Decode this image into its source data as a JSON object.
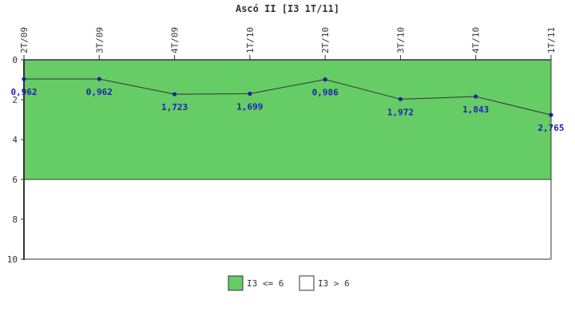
{
  "chart_data": {
    "type": "line",
    "title": "Ascó II [I3 1T/11]",
    "categories": [
      "2T/09",
      "3T/09",
      "4T/09",
      "1T/10",
      "2T/10",
      "3T/10",
      "4T/10",
      "1T/11"
    ],
    "series": [
      {
        "values": [
          0.962,
          0.962,
          1.723,
          1.699,
          0.986,
          1.972,
          1.843,
          2.765
        ],
        "labels": [
          "0,962",
          "0,962",
          "1,723",
          "1,699",
          "0,986",
          "1,972",
          "1,843",
          "2,765"
        ]
      }
    ],
    "ylim": [
      0,
      10
    ],
    "y_inverted": true,
    "yticks": [
      "0",
      "2",
      "4",
      "6",
      "8",
      "10"
    ],
    "threshold": 6,
    "bands": [
      {
        "from": 0,
        "to": 6,
        "label": "I3 <= 6",
        "color": "#66cc66"
      },
      {
        "from": 6,
        "to": 10,
        "label": "I3 > 6",
        "color": "#ffffff"
      }
    ],
    "line_color": "#333333",
    "marker_color": "#1f1f9f",
    "label_color": "#1f1fb0",
    "legend": {
      "placement": "bottom-center"
    }
  }
}
